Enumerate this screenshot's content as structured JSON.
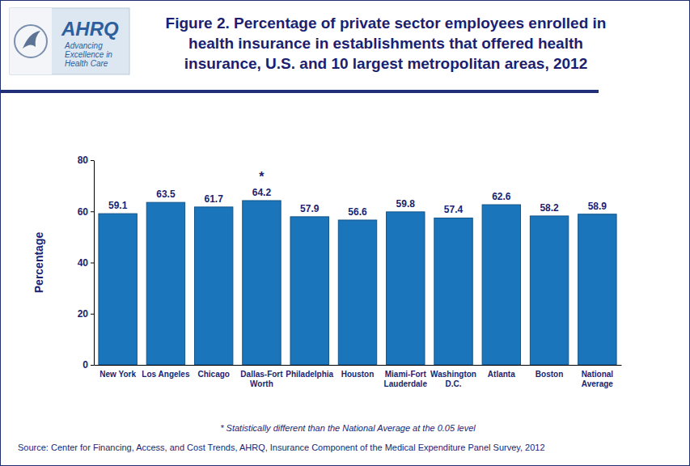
{
  "chart_data": {
    "type": "bar",
    "title": "Figure 2. Percentage of private sector employees enrolled in health insurance in establishments that offered health insurance, U.S. and 10 largest metropolitan areas, 2012",
    "logo": "AHRQ",
    "logo_tagline": [
      "Advancing",
      "Excellence in",
      "Health Care"
    ],
    "y_label": "Percentage",
    "categories": [
      "New York",
      "Los Angeles",
      "Chicago",
      "Dallas-Fort Worth",
      "Philadelphia",
      "Houston",
      "Miami-Fort Lauderdale",
      "Washington D.C.",
      "Atlanta",
      "Boston",
      "National Average"
    ],
    "values": [
      59.1,
      63.5,
      61.7,
      64.2,
      57.9,
      56.6,
      59.8,
      57.4,
      62.6,
      58.2,
      58.9
    ],
    "color": "#1b75bb",
    "ylim": [
      0,
      80
    ],
    "yticks": [
      0,
      20,
      40,
      60,
      80
    ],
    "grid": false,
    "data_labels": true,
    "annotations": [
      {
        "category": "Dallas-Fort Worth",
        "text": "*"
      }
    ],
    "footnote": "* Statistically different than the National Average at the 0.05 level",
    "source": "Source: Center for Financing, Access, and Cost Trends, AHRQ, Insurance Component of the Medical Expenditure Panel Survey, 2012"
  }
}
